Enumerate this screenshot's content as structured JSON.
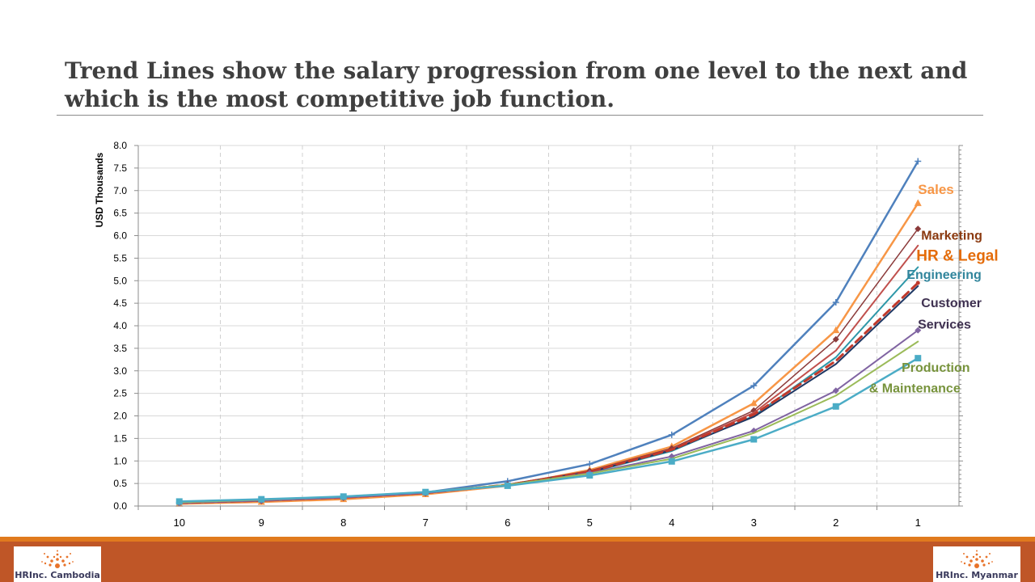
{
  "slide": {
    "title": "Trend Lines show the salary progression from one level to the next and which is the most competitive job function."
  },
  "chart_data": {
    "type": "line",
    "ylabel": "USD Thousands",
    "xlabel": "",
    "categories": [
      "10",
      "9",
      "8",
      "7",
      "6",
      "5",
      "4",
      "3",
      "2",
      "1"
    ],
    "ylim": [
      0,
      8
    ],
    "yticks": [
      "0.0",
      "0.5",
      "1.0",
      "1.5",
      "2.0",
      "2.5",
      "3.0",
      "3.5",
      "4.0",
      "4.5",
      "5.0",
      "5.5",
      "6.0",
      "6.5",
      "7.0",
      "7.5",
      "8.0"
    ],
    "grid": "vertical dashed, horizontal solid",
    "series": [
      {
        "color": "#4f81bd",
        "marker": "plus",
        "width": 2.5,
        "values": [
          0.08,
          0.13,
          0.2,
          0.3,
          0.55,
          0.93,
          1.58,
          2.67,
          4.52,
          7.65
        ]
      },
      {
        "color": "#f79646",
        "marker": "triangle",
        "width": 2.5,
        "values": [
          0.05,
          0.09,
          0.15,
          0.26,
          0.45,
          0.8,
          1.32,
          2.28,
          3.9,
          6.72
        ]
      },
      {
        "color": "#8b3a3a",
        "marker": "diamond",
        "width": 1.5,
        "values": [
          0.06,
          0.11,
          0.18,
          0.28,
          0.48,
          0.78,
          1.28,
          2.12,
          3.7,
          6.15
        ]
      },
      {
        "color": "#c0504d",
        "marker": "none",
        "width": 2,
        "values": [
          0.07,
          0.12,
          0.19,
          0.29,
          0.47,
          0.76,
          1.26,
          2.07,
          3.45,
          5.78
        ]
      },
      {
        "color": "#2d97a8",
        "marker": "none",
        "width": 2,
        "values": [
          0.07,
          0.12,
          0.19,
          0.29,
          0.46,
          0.74,
          1.22,
          2.0,
          3.3,
          5.3
        ]
      },
      {
        "color": "#1f3864",
        "marker": "none",
        "width": 2,
        "values": [
          0.08,
          0.13,
          0.2,
          0.3,
          0.47,
          0.75,
          1.24,
          1.98,
          3.15,
          4.88
        ]
      },
      {
        "color": "#c0392b",
        "marker": "dot",
        "width": 3,
        "dashed": true,
        "values": [
          0.07,
          0.12,
          0.19,
          0.29,
          0.47,
          0.76,
          1.25,
          2.03,
          3.22,
          4.95
        ]
      },
      {
        "color": "#8064a2",
        "marker": "diamond",
        "width": 2,
        "values": [
          0.07,
          0.12,
          0.19,
          0.29,
          0.46,
          0.73,
          1.1,
          1.67,
          2.56,
          3.9
        ]
      },
      {
        "color": "#9bbb59",
        "marker": "none",
        "width": 2,
        "values": [
          0.08,
          0.14,
          0.21,
          0.31,
          0.47,
          0.72,
          1.05,
          1.62,
          2.45,
          3.65
        ]
      },
      {
        "color": "#4bacc6",
        "marker": "square",
        "width": 2.5,
        "values": [
          0.1,
          0.15,
          0.21,
          0.31,
          0.45,
          0.68,
          0.99,
          1.48,
          2.21,
          3.28
        ]
      }
    ],
    "annotations": [
      {
        "text": "Sales",
        "color": "#f79646",
        "anchor": "start",
        "at": [
          1,
          6.92
        ],
        "size": 17
      },
      {
        "text": "Marketing",
        "color": "#8b3a10",
        "anchor": "start",
        "at": [
          1,
          5.91
        ],
        "size": 16
      },
      {
        "text": "HR & Legal",
        "color": "#e46c0a",
        "anchor": "start",
        "at": [
          1,
          5.44
        ],
        "size": 19
      },
      {
        "text": "Engineering",
        "color": "#31859c",
        "anchor": "start",
        "at": [
          1,
          5.04
        ],
        "size": 16
      },
      {
        "text": "Customer",
        "color": "#3f3151",
        "anchor": "start",
        "at": [
          1,
          4.41
        ],
        "size": 16
      },
      {
        "text": "Services",
        "color": "#3f3151",
        "anchor": "start",
        "at": [
          1.1,
          3.94
        ],
        "size": 16
      },
      {
        "text": "Production",
        "color": "#77933c",
        "anchor": "start",
        "at": [
          1.1,
          2.98
        ],
        "size": 16
      },
      {
        "text": "& Maintenance",
        "color": "#77933c",
        "anchor": "start",
        "at": [
          1.3,
          2.52
        ],
        "size": 16
      }
    ]
  },
  "footer": {
    "band_color": "#bf5627",
    "stripe_color": "#e07a1e",
    "left_logo": "HRInc. Cambodia",
    "right_logo": "HRInc. Myanmar"
  }
}
